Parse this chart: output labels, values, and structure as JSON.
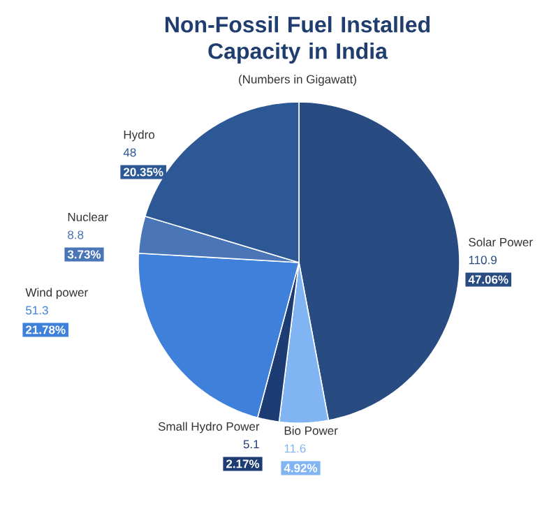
{
  "chart_data": {
    "type": "pie",
    "title": "Non-Fossil Fuel Installed Capacity in India",
    "subtitle": "(Numbers in Gigawatt)",
    "categories": [
      "Solar Power",
      "Bio Power",
      "Small Hydro Power",
      "Wind power",
      "Nuclear",
      "Hydro"
    ],
    "values": [
      47.06,
      4.92,
      2.17,
      21.78,
      3.73,
      20.35
    ],
    "value_labels": [
      "47.06%",
      "4.92%",
      "2.17%",
      "21.78%",
      "3.73%",
      "20.35%"
    ],
    "annotations": [
      "110.9",
      "11.6",
      "5.1",
      "51.3",
      "8.8",
      "48"
    ],
    "colors": [
      "#284b82",
      "#80b4f2",
      "#1e3c74",
      "#3e80da",
      "#4a76b8",
      "#2d5896"
    ]
  }
}
